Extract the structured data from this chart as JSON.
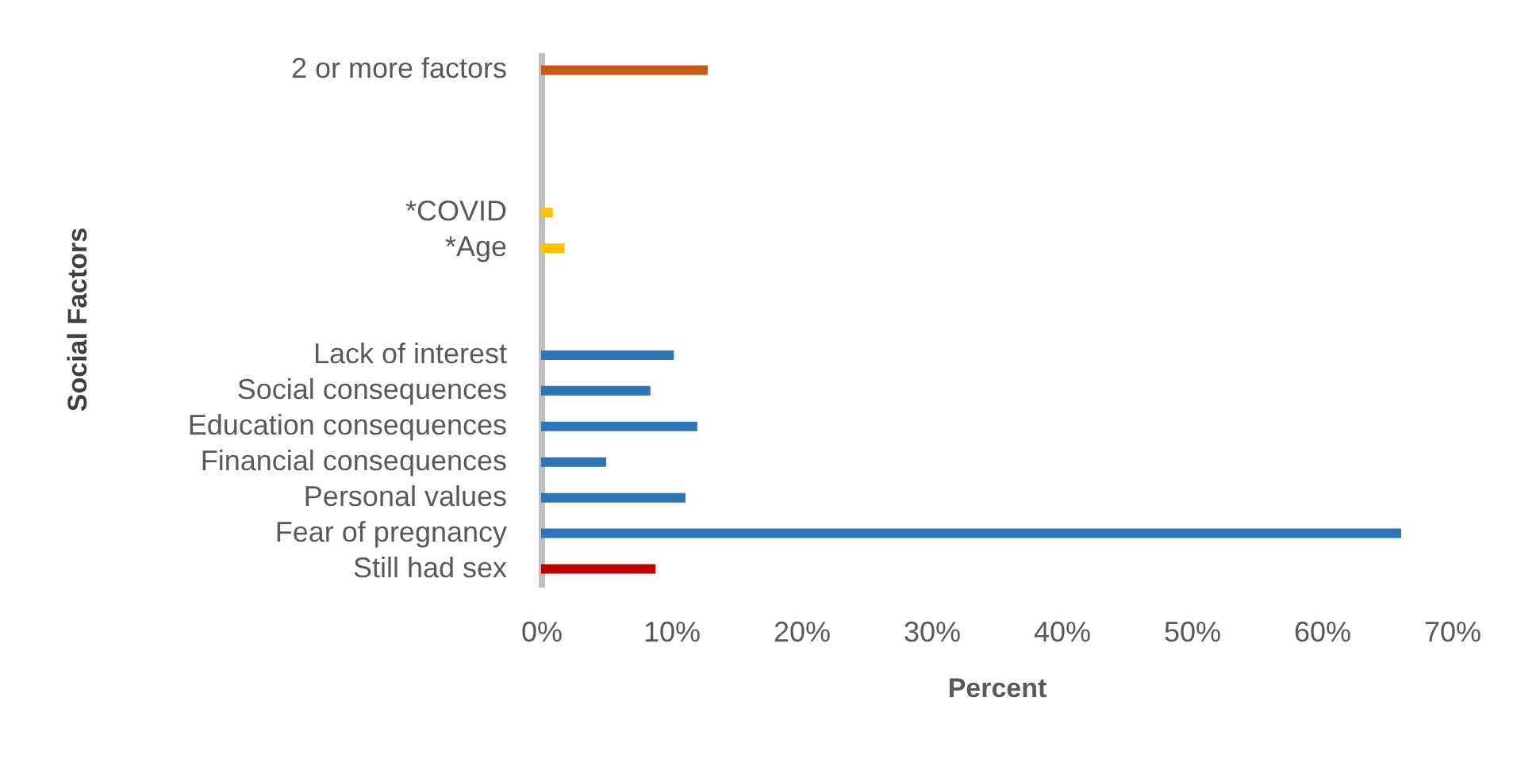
{
  "chart_data": {
    "type": "bar",
    "orientation": "horizontal",
    "xlabel": "Percent",
    "ylabel": "Social Factors",
    "categories": [
      "2 or more factors",
      null,
      null,
      null,
      "*COVID",
      "*Age",
      null,
      null,
      "Lack of interest",
      "Social consequences",
      "Education consequences",
      "Financial consequences",
      "Personal values",
      "Fear of pregnancy",
      "Still had sex"
    ],
    "values": [
      12.8,
      null,
      null,
      null,
      0.9,
      1.8,
      null,
      null,
      10.2,
      8.4,
      12,
      5,
      11.1,
      66.1,
      8.8
    ],
    "colors": [
      "#c55a11",
      null,
      null,
      null,
      "#ffc000",
      "#ffc000",
      null,
      null,
      "#2e75b6",
      "#2e75b6",
      "#2e75b6",
      "#2e75b6",
      "#2e75b6",
      "#2e75b6",
      "#c00000"
    ],
    "xlim": [
      0,
      70
    ],
    "xticks": [
      {
        "value": 0,
        "label": "0%"
      },
      {
        "value": 10,
        "label": "10%"
      },
      {
        "value": 20,
        "label": "20%"
      },
      {
        "value": 30,
        "label": "30%"
      },
      {
        "value": 40,
        "label": "40%"
      },
      {
        "value": 50,
        "label": "50%"
      },
      {
        "value": 60,
        "label": "60%"
      },
      {
        "value": 70,
        "label": "70%"
      }
    ]
  }
}
